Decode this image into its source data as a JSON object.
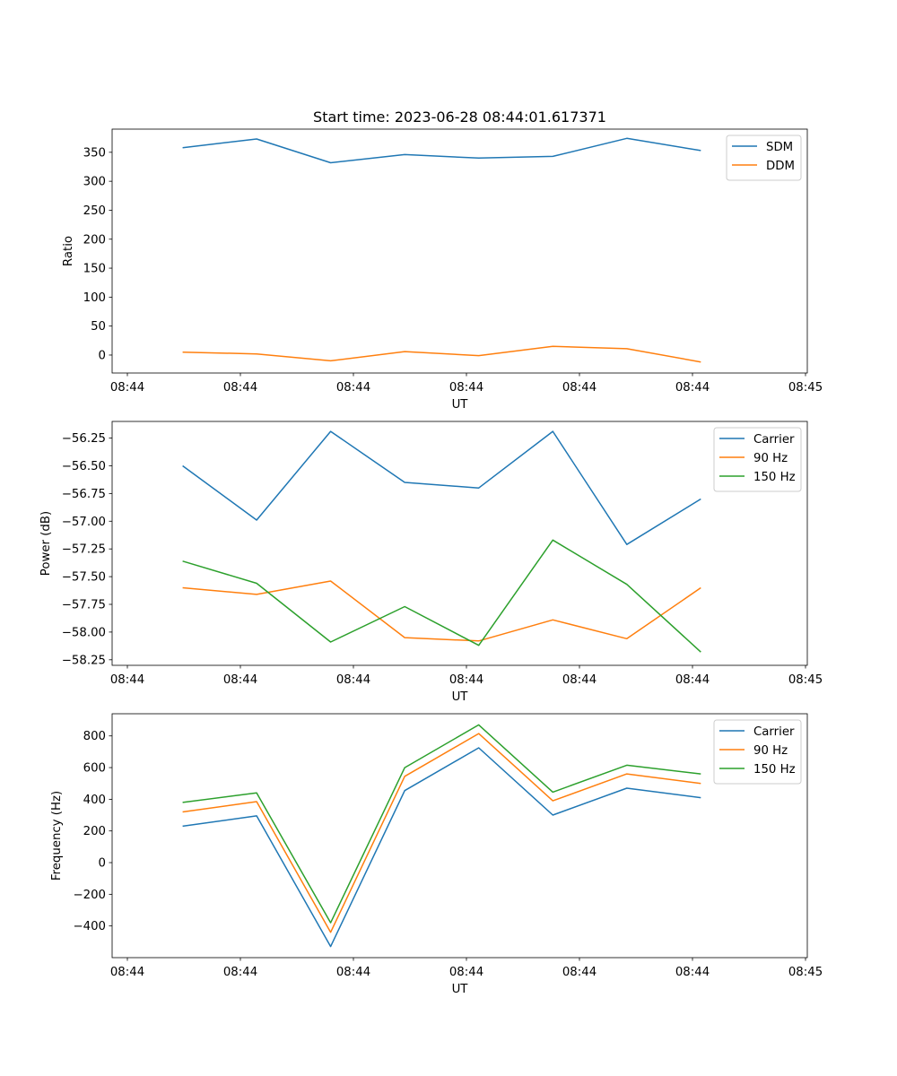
{
  "chart_data": [
    {
      "type": "line",
      "title": "Start time: 2023-06-28 08:44:01.617371",
      "xlabel": "UT",
      "ylabel": "Ratio",
      "x_tick_labels": [
        "08:44",
        "08:44",
        "08:44",
        "08:44",
        "08:44",
        "08:44",
        "08:44"
      ],
      "last_x_tick_label": "08:45",
      "y_ticks": [
        0,
        50,
        100,
        150,
        200,
        250,
        300,
        350
      ],
      "ylim": [
        -31,
        390
      ],
      "legend_position": "upper-right",
      "series": [
        {
          "name": "SDM",
          "color": "#1f77b4",
          "values": [
            358,
            373,
            332,
            346,
            340,
            343,
            374,
            353
          ]
        },
        {
          "name": "DDM",
          "color": "#ff7f0e",
          "values": [
            5,
            2,
            -10,
            6,
            -1,
            15,
            11,
            -12
          ]
        }
      ]
    },
    {
      "type": "line",
      "title": "",
      "xlabel": "UT",
      "ylabel": "Power (dB)",
      "x_tick_labels": [
        "08:44",
        "08:44",
        "08:44",
        "08:44",
        "08:44",
        "08:44",
        "08:44"
      ],
      "last_x_tick_label": "08:45",
      "y_ticks": [
        -58.25,
        -58.0,
        -57.75,
        -57.5,
        -57.25,
        -57.0,
        -56.75,
        -56.5,
        -56.25
      ],
      "y_tick_labels": [
        "−58.25",
        "−58.00",
        "−57.75",
        "−57.50",
        "−57.25",
        "−57.00",
        "−56.75",
        "−56.50",
        "−56.25"
      ],
      "ylim": [
        -58.3,
        -56.1
      ],
      "legend_position": "upper-right",
      "series": [
        {
          "name": "Carrier",
          "color": "#1f77b4",
          "values": [
            -56.5,
            -56.99,
            -56.19,
            -56.65,
            -56.7,
            -56.19,
            -57.21,
            -56.8
          ]
        },
        {
          "name": "90 Hz",
          "color": "#ff7f0e",
          "values": [
            -57.6,
            -57.66,
            -57.54,
            -58.05,
            -58.08,
            -57.89,
            -58.06,
            -57.6
          ]
        },
        {
          "name": "150 Hz",
          "color": "#2ca02c",
          "values": [
            -57.36,
            -57.56,
            -58.09,
            -57.77,
            -58.12,
            -57.17,
            -57.57,
            -58.18
          ]
        }
      ]
    },
    {
      "type": "line",
      "title": "",
      "xlabel": "UT",
      "ylabel": "Frequency (Hz)",
      "x_tick_labels": [
        "08:44",
        "08:44",
        "08:44",
        "08:44",
        "08:44",
        "08:44",
        "08:44"
      ],
      "last_x_tick_label": "08:45",
      "y_ticks": [
        -400,
        -200,
        0,
        200,
        400,
        600,
        800
      ],
      "y_tick_labels": [
        "−400",
        "−200",
        "0",
        "200",
        "400",
        "600",
        "800"
      ],
      "ylim": [
        -600,
        940
      ],
      "legend_position": "upper-right",
      "series": [
        {
          "name": "Carrier",
          "color": "#1f77b4",
          "values": [
            230,
            295,
            -530,
            455,
            725,
            300,
            470,
            410
          ]
        },
        {
          "name": "90 Hz",
          "color": "#ff7f0e",
          "values": [
            320,
            385,
            -440,
            545,
            815,
            390,
            560,
            500
          ]
        },
        {
          "name": "150 Hz",
          "color": "#2ca02c",
          "values": [
            380,
            440,
            -380,
            600,
            870,
            445,
            615,
            560
          ]
        }
      ]
    }
  ]
}
